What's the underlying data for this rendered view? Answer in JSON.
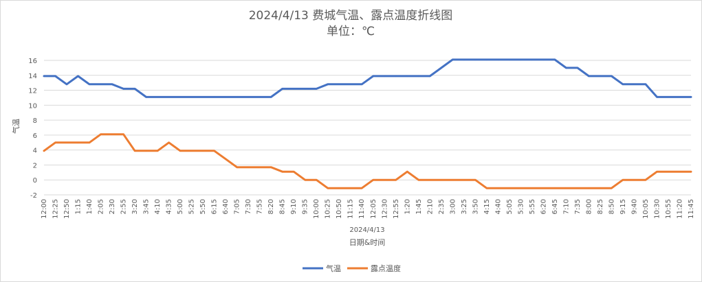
{
  "chart_data": {
    "type": "line",
    "title": "2024/4/13 费城气温、露点温度折线图",
    "subtitle": "单位：℃",
    "xlabel": "日期&时间",
    "x_group_label": "2024/4/13",
    "ylabel": "气温",
    "ylim": [
      -2,
      16
    ],
    "yticks": [
      -2,
      0,
      2,
      4,
      6,
      8,
      10,
      12,
      14,
      16
    ],
    "grid": true,
    "legend_position": "bottom",
    "x_tick_labels": [
      "12:00",
      "12:25",
      "12:50",
      "1:15",
      "1:40",
      "2:05",
      "2:30",
      "2:55",
      "3:20",
      "3:45",
      "4:10",
      "4:35",
      "5:00",
      "5:25",
      "5:50",
      "6:15",
      "6:40",
      "7:05",
      "7:30",
      "7:55",
      "8:20",
      "8:45",
      "9:10",
      "9:35",
      "10:00",
      "10:25",
      "10:50",
      "11:15",
      "11:40",
      "12:05",
      "12:30",
      "12:55",
      "1:20",
      "1:45",
      "2:10",
      "2:35",
      "3:00",
      "3:25",
      "3:50",
      "4:15",
      "4:40",
      "5:05",
      "5:30",
      "5:55",
      "6:20",
      "6:45",
      "7:10",
      "7:35",
      "8:00",
      "8:25",
      "8:50",
      "9:15",
      "9:40",
      "10:05",
      "10:30",
      "10:55",
      "11:20",
      "11:45"
    ],
    "x": [
      "12:00",
      "12:25",
      "12:50",
      "1:15",
      "1:40",
      "2:05",
      "2:30",
      "2:55",
      "3:20",
      "3:45",
      "4:10",
      "4:35",
      "5:00",
      "5:25",
      "5:50",
      "6:15",
      "6:40",
      "7:05",
      "7:30",
      "7:55",
      "8:20",
      "8:45",
      "9:10",
      "9:35",
      "10:00",
      "10:25",
      "10:50",
      "11:15",
      "11:40",
      "12:05",
      "12:30",
      "12:55",
      "1:20",
      "1:45",
      "2:10",
      "2:35",
      "3:00",
      "3:25",
      "3:50",
      "4:15",
      "4:40",
      "5:05",
      "5:30",
      "5:55",
      "6:20",
      "6:45",
      "7:10",
      "7:35",
      "8:00",
      "8:25",
      "8:50",
      "9:15",
      "9:40",
      "10:05",
      "10:30",
      "10:55",
      "11:20",
      "11:45"
    ],
    "series": [
      {
        "name": "气温",
        "color": "#4472C4",
        "values": [
          13.9,
          13.9,
          12.8,
          13.9,
          12.8,
          12.8,
          12.8,
          12.2,
          12.2,
          11.1,
          11.1,
          11.1,
          11.1,
          11.1,
          11.1,
          11.1,
          11.1,
          11.1,
          11.1,
          11.1,
          11.1,
          12.2,
          12.2,
          12.2,
          12.2,
          12.8,
          12.8,
          12.8,
          12.8,
          13.9,
          13.9,
          13.9,
          13.9,
          13.9,
          13.9,
          15.0,
          16.1,
          16.1,
          16.1,
          16.1,
          16.1,
          16.1,
          16.1,
          16.1,
          16.1,
          16.1,
          15.0,
          15.0,
          13.9,
          13.9,
          13.9,
          12.8,
          12.8,
          12.8,
          11.1,
          11.1,
          11.1,
          11.1
        ]
      },
      {
        "name": "露点温度",
        "color": "#ED7D31",
        "values": [
          3.9,
          5.0,
          5.0,
          5.0,
          5.0,
          6.1,
          6.1,
          6.1,
          3.9,
          3.9,
          3.9,
          5.0,
          3.9,
          3.9,
          3.9,
          3.9,
          2.8,
          1.7,
          1.7,
          1.7,
          1.7,
          1.1,
          1.1,
          0.0,
          0.0,
          -1.1,
          -1.1,
          -1.1,
          -1.1,
          0.0,
          0.0,
          0.0,
          1.1,
          0.0,
          0.0,
          0.0,
          0.0,
          0.0,
          0.0,
          -1.1,
          -1.1,
          -1.1,
          -1.1,
          -1.1,
          -1.1,
          -1.1,
          -1.1,
          -1.1,
          -1.1,
          -1.1,
          -1.1,
          0.0,
          0.0,
          0.0,
          1.1,
          1.1,
          1.1,
          1.1
        ]
      }
    ]
  }
}
